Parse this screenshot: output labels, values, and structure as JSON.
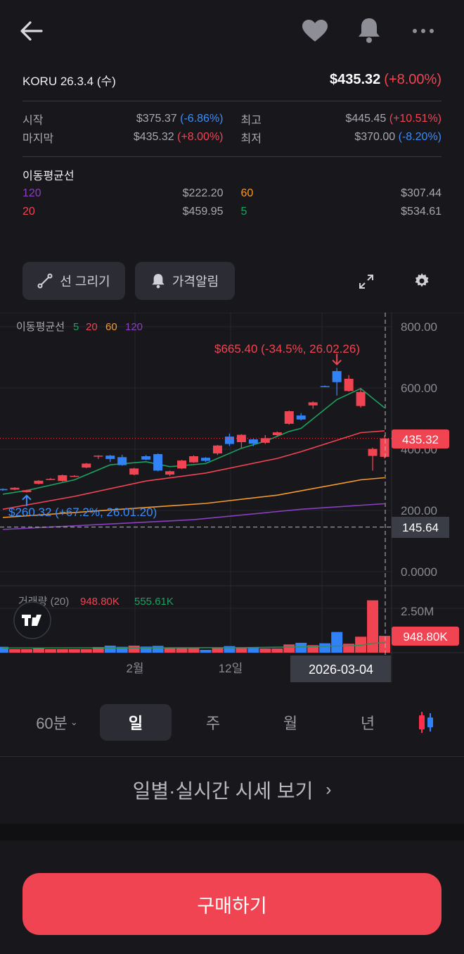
{
  "header": {
    "back_icon": "arrow-left-icon",
    "favorite_icon": "heart-icon",
    "alert_icon": "bell-icon",
    "more_icon": "more-dots-icon"
  },
  "summary": {
    "ticker_date": "KORU 26.3.4 (수)",
    "price": "$435.32",
    "change": "(+8.00%)",
    "open_label": "시작",
    "open_value": "$375.37",
    "open_change": "(-6.86%)",
    "high_label": "최고",
    "high_value": "$445.45",
    "high_change": "(+10.51%)",
    "close_label": "마지막",
    "close_value": "$435.32",
    "close_change": "(+8.00%)",
    "low_label": "최저",
    "low_value": "$370.00",
    "low_change": "(-8.20%)"
  },
  "moving_averages": {
    "title": "이동평균선",
    "items": [
      {
        "period": "120",
        "value": "$222.20",
        "color": "#8b3fc1"
      },
      {
        "period": "60",
        "value": "$307.44",
        "color": "#f79a2b"
      },
      {
        "period": "20",
        "value": "$459.95",
        "color": "#f04452"
      },
      {
        "period": "5",
        "value": "$534.61",
        "color": "#1aa260"
      }
    ]
  },
  "toolbar": {
    "draw_line": "선 그리기",
    "price_alert": "가격알림",
    "expand_icon": "expand-icon",
    "settings_icon": "gear-icon"
  },
  "chart_data": {
    "type": "candlestick",
    "legend": {
      "label": "이동평균선",
      "periods": [
        "5",
        "20",
        "60",
        "120"
      ]
    },
    "y_ticks": [
      "800.00",
      "600.00",
      "400.00",
      "200.00",
      "0.0000"
    ],
    "ylim": [
      0,
      800
    ],
    "x_ticks": [
      "2월",
      "12일"
    ],
    "colors": {
      "up": "#f04452",
      "down": "#3182f6",
      "ma5": "#1aa260",
      "ma20": "#f04452",
      "ma60": "#f79a2b",
      "ma120": "#8b3fc1"
    },
    "candles": [
      [
        270,
        272,
        264,
        266
      ],
      [
        268,
        276,
        266,
        274
      ],
      [
        260,
        268,
        258,
        266
      ],
      [
        287,
        299,
        285,
        297
      ],
      [
        301,
        306,
        299,
        303
      ],
      [
        296,
        317,
        294,
        315
      ],
      [
        311,
        315,
        309,
        313
      ],
      [
        340,
        355,
        338,
        353
      ],
      [
        379,
        380,
        368,
        379
      ],
      [
        379,
        381,
        358,
        368
      ],
      [
        374,
        382,
        346,
        348
      ],
      [
        317,
        339,
        315,
        337
      ],
      [
        377,
        381,
        364,
        366
      ],
      [
        384,
        386,
        328,
        330
      ],
      [
        317,
        330,
        312,
        328
      ],
      [
        337,
        365,
        335,
        363
      ],
      [
        357,
        380,
        355,
        377
      ],
      [
        372,
        374,
        358,
        362
      ],
      [
        386,
        414,
        381,
        412
      ],
      [
        441,
        451,
        410,
        417
      ],
      [
        423,
        449,
        404,
        447
      ],
      [
        432,
        434,
        410,
        418
      ],
      [
        421,
        446,
        417,
        436
      ],
      [
        446,
        458,
        442,
        455
      ],
      [
        483,
        526,
        480,
        524
      ],
      [
        510,
        518,
        494,
        497
      ],
      [
        543,
        556,
        532,
        553
      ],
      [
        606,
        608,
        603,
        605
      ],
      [
        655,
        665.4,
        575,
        619
      ],
      [
        590,
        642,
        588,
        630
      ],
      [
        541,
        600,
        536,
        587
      ],
      [
        378,
        405,
        330,
        401
      ],
      [
        375,
        445,
        370,
        435
      ]
    ],
    "ma": {
      "5": [
        [
          0,
          253
        ],
        [
          2,
          265
        ],
        [
          6,
          300
        ],
        [
          9,
          349
        ],
        [
          12,
          359
        ],
        [
          14,
          343
        ],
        [
          17,
          353
        ],
        [
          20,
          403
        ],
        [
          22,
          426
        ],
        [
          24,
          458
        ],
        [
          25,
          468
        ],
        [
          28,
          562
        ],
        [
          30,
          598
        ],
        [
          32,
          535
        ]
      ],
      "20": [
        [
          0,
          204
        ],
        [
          6,
          246
        ],
        [
          12,
          296
        ],
        [
          17,
          322
        ],
        [
          23,
          370
        ],
        [
          25,
          392
        ],
        [
          30,
          454
        ],
        [
          32,
          460
        ]
      ],
      "60": [
        [
          0,
          177
        ],
        [
          17,
          223
        ],
        [
          23,
          250
        ],
        [
          30,
          300
        ],
        [
          32,
          307
        ]
      ],
      "120": [
        [
          0,
          138
        ],
        [
          16,
          170
        ],
        [
          25,
          204
        ],
        [
          32,
          222
        ]
      ]
    },
    "annotations": {
      "high": {
        "text": "$665.40 (-34.5%, 26.02.26)",
        "value": 665.4,
        "index": 28
      },
      "low": {
        "text": "$260.32 (+67.2%, 26.01.20)",
        "value": 260.32,
        "index": 2
      }
    },
    "current_price_label": "435.32",
    "current_price": 435.32,
    "crosshair_price_label": "145.64",
    "crosshair_price": 145.64,
    "crosshair_date": "2026-03-04",
    "volume": {
      "label": "거래량 (20)",
      "current": "948.80K",
      "ma_value": "555.61K",
      "y_tick": "2.50M",
      "max": 2500,
      "values_k": [
        331,
        199,
        199,
        238,
        199,
        199,
        199,
        199,
        318,
        397,
        331,
        397,
        344,
        384,
        265,
        291,
        265,
        159,
        291,
        371,
        291,
        291,
        238,
        238,
        463,
        556,
        423,
        529,
        1165,
        503,
        900,
        2951,
        949
      ],
      "ma_k": [
        [
          0,
          260
        ],
        [
          10,
          270
        ],
        [
          20,
          280
        ],
        [
          25,
          330
        ],
        [
          29,
          390
        ],
        [
          30,
          420
        ],
        [
          31,
          530
        ],
        [
          32,
          556
        ]
      ]
    }
  },
  "intervals": {
    "minute": "60분",
    "day": "일",
    "week": "주",
    "month": "월",
    "year": "년",
    "active": "일",
    "chart_type_icon": "candlestick-icon"
  },
  "daily_link": "일별·실시간 시세 보기",
  "buy_button": "구매하기"
}
